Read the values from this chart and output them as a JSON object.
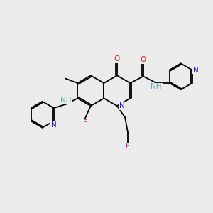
{
  "background_color": "#ebebeb",
  "atom_colors": {
    "C": "#000000",
    "N": "#2222cc",
    "O": "#cc2222",
    "F": "#cc22cc",
    "NH": "#66aaaa",
    "H": "#66aaaa"
  },
  "bond_color": "#000000",
  "figsize": [
    3.0,
    3.0
  ],
  "dpi": 100
}
